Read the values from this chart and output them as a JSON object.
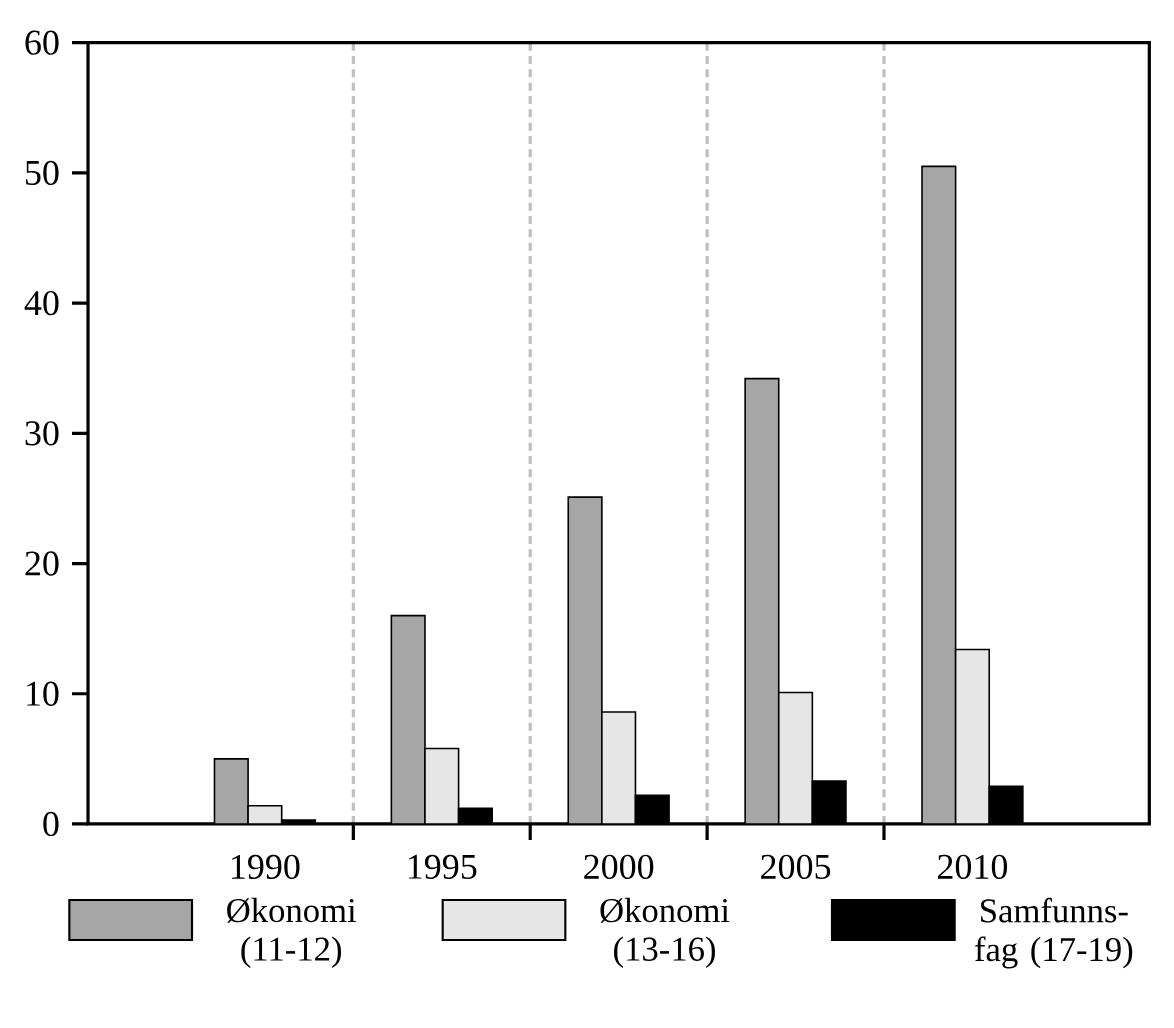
{
  "chart_data": {
    "type": "bar",
    "categories": [
      "1990",
      "1995",
      "2000",
      "2005",
      "2010"
    ],
    "series": [
      {
        "name": "Økonomi (11-12)",
        "color": "#a6a6a6",
        "values": [
          5,
          16,
          25.1,
          34.2,
          50.5
        ]
      },
      {
        "name": "Økonomi (13-16)",
        "color": "#e6e6e6",
        "values": [
          1.4,
          5.8,
          8.6,
          10.1,
          13.4
        ]
      },
      {
        "name": "Samfunns-fag (17-19)",
        "color": "#000000",
        "values": [
          0.3,
          1.2,
          2.2,
          3.3,
          2.9
        ]
      }
    ],
    "ylim": [
      0,
      60
    ],
    "yticks": [
      0,
      10,
      20,
      30,
      40,
      50,
      60
    ],
    "grid": "x",
    "legend": "bottom"
  }
}
